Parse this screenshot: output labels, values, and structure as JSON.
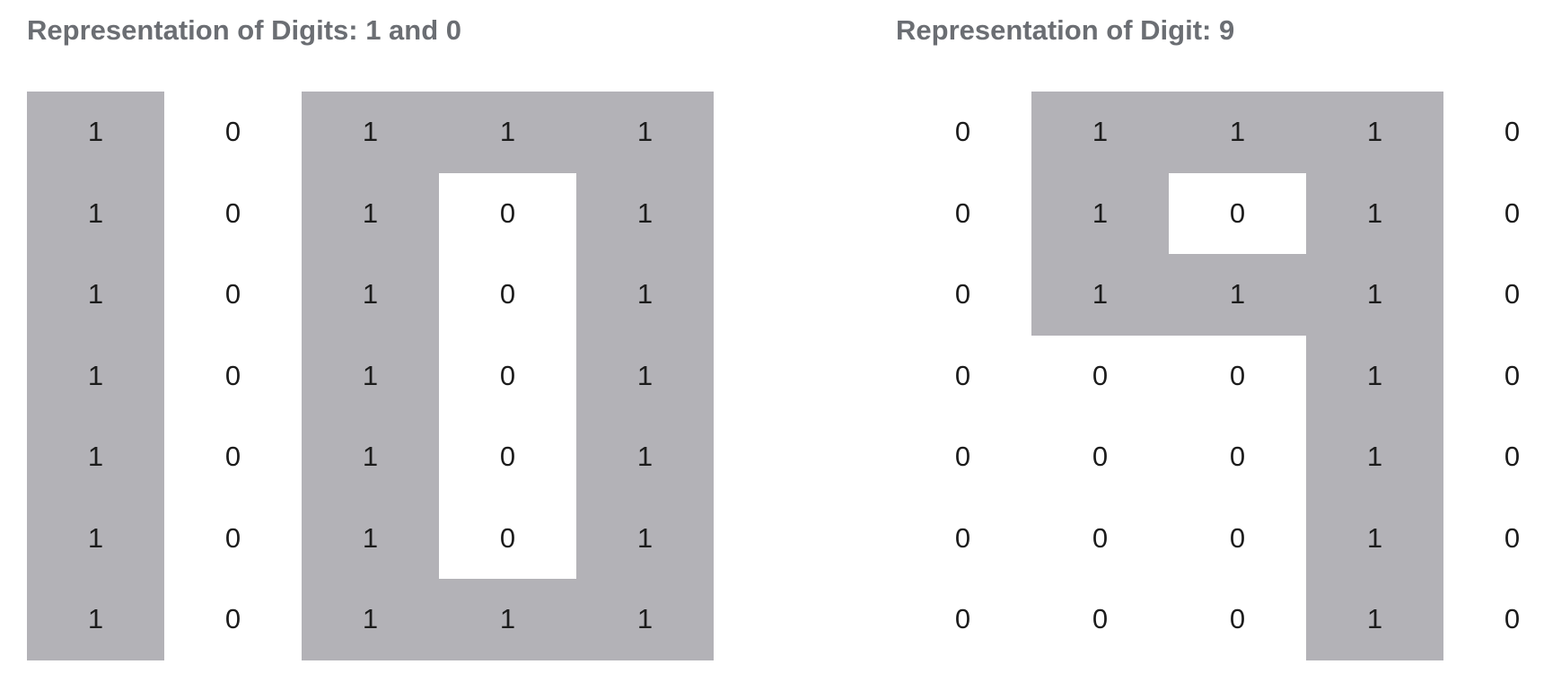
{
  "panels": [
    {
      "title": "Representation of Digits: 1 and 0",
      "matrix": [
        [
          1,
          0,
          1,
          1,
          1
        ],
        [
          1,
          0,
          1,
          0,
          1
        ],
        [
          1,
          0,
          1,
          0,
          1
        ],
        [
          1,
          0,
          1,
          0,
          1
        ],
        [
          1,
          0,
          1,
          0,
          1
        ],
        [
          1,
          0,
          1,
          0,
          1
        ],
        [
          1,
          0,
          1,
          1,
          1
        ]
      ],
      "highlight_mask": [
        [
          1,
          0,
          1,
          1,
          1
        ],
        [
          1,
          0,
          1,
          0,
          1
        ],
        [
          1,
          0,
          1,
          0,
          1
        ],
        [
          1,
          0,
          1,
          0,
          1
        ],
        [
          1,
          0,
          1,
          0,
          1
        ],
        [
          1,
          0,
          1,
          0,
          1
        ],
        [
          1,
          0,
          1,
          1,
          1
        ]
      ]
    },
    {
      "title": "Representation of Digit: 9",
      "matrix": [
        [
          0,
          1,
          1,
          1,
          0
        ],
        [
          0,
          1,
          0,
          1,
          0
        ],
        [
          0,
          1,
          1,
          1,
          0
        ],
        [
          0,
          0,
          0,
          1,
          0
        ],
        [
          0,
          0,
          0,
          1,
          0
        ],
        [
          0,
          0,
          0,
          1,
          0
        ],
        [
          0,
          0,
          0,
          1,
          0
        ]
      ],
      "highlight_mask": [
        [
          0,
          1,
          1,
          1,
          0
        ],
        [
          0,
          1,
          0,
          1,
          0
        ],
        [
          0,
          1,
          1,
          1,
          0
        ],
        [
          0,
          0,
          0,
          1,
          0
        ],
        [
          0,
          0,
          0,
          1,
          0
        ],
        [
          0,
          0,
          0,
          1,
          0
        ],
        [
          0,
          0,
          0,
          1,
          0
        ]
      ]
    }
  ],
  "colors": {
    "highlight": "#b3b2b7",
    "title": "#6b6e73",
    "text": "#1c1c1c",
    "background": "#ffffff"
  }
}
